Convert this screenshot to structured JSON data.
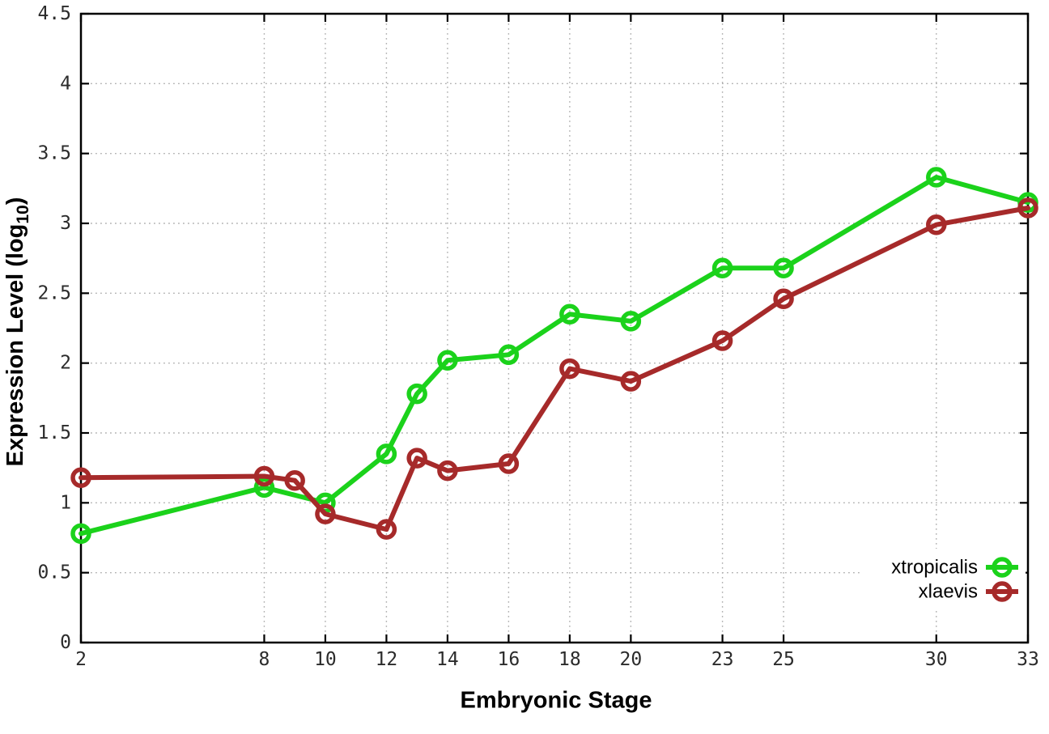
{
  "chart_data": {
    "type": "line",
    "title": "",
    "xlabel": "Embryonic Stage",
    "ylabel": "Expression Level (log10)",
    "ylabel_parts": {
      "prefix": "Expression Level (log",
      "sub": "10",
      "suffix": ")"
    },
    "xlim": [
      2,
      33
    ],
    "ylim": [
      0,
      4.5
    ],
    "x_ticks": [
      2,
      8,
      10,
      12,
      14,
      16,
      18,
      20,
      23,
      25,
      30,
      33
    ],
    "x_tick_labels": [
      "2",
      "8",
      "10",
      "12",
      "14",
      "16",
      "18",
      "20",
      "23",
      "25",
      "30",
      "33"
    ],
    "y_ticks": [
      0,
      0.5,
      1,
      1.5,
      2,
      2.5,
      3,
      3.5,
      4,
      4.5
    ],
    "y_tick_labels": [
      "0",
      "0.5",
      "1",
      "1.5",
      "2",
      "2.5",
      "3",
      "3.5",
      "4",
      "4.5"
    ],
    "grid": true,
    "grid_style": "dotted",
    "legend": {
      "position": "bottom-right",
      "entries": [
        "xtropicalis",
        "xlaevis"
      ]
    },
    "series": [
      {
        "name": "xtropicalis",
        "color": "#1bd21b",
        "marker": "open-circle",
        "points": [
          [
            2,
            0.78
          ],
          [
            8,
            1.11
          ],
          [
            10,
            1.0
          ],
          [
            12,
            1.35
          ],
          [
            13,
            1.78
          ],
          [
            14,
            2.02
          ],
          [
            16,
            2.06
          ],
          [
            18,
            2.35
          ],
          [
            20,
            2.3
          ],
          [
            23,
            2.68
          ],
          [
            25,
            2.68
          ],
          [
            30,
            3.33
          ],
          [
            33,
            3.15
          ]
        ]
      },
      {
        "name": "xlaevis",
        "color": "#a62a2a",
        "marker": "open-circle",
        "points": [
          [
            2,
            1.18
          ],
          [
            8,
            1.19
          ],
          [
            9,
            1.16
          ],
          [
            10,
            0.92
          ],
          [
            12,
            0.81
          ],
          [
            13,
            1.32
          ],
          [
            14,
            1.23
          ],
          [
            16,
            1.28
          ],
          [
            18,
            1.96
          ],
          [
            20,
            1.87
          ],
          [
            23,
            2.16
          ],
          [
            25,
            2.46
          ],
          [
            30,
            2.99
          ],
          [
            33,
            3.11
          ]
        ]
      }
    ],
    "style": {
      "grid_color": "#b0b0b0",
      "border_color": "#000000",
      "tick_label_color": "#2b2b2b",
      "background": "#ffffff"
    }
  }
}
